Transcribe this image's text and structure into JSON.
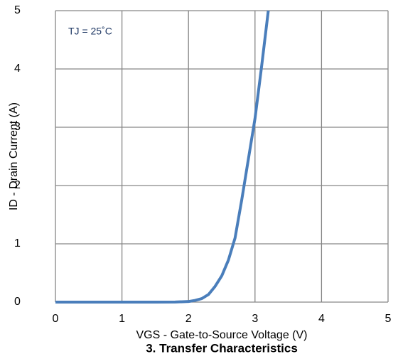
{
  "chart_data": {
    "type": "line",
    "title": "3. Transfer Characteristics",
    "xlabel": "VGS - Gate-to-Source Voltage (V)",
    "ylabel": "ID - Drain Current (A)",
    "annotation": "TJ = 25˚C",
    "x": [
      0,
      0.5,
      1,
      1.5,
      1.8,
      2.0,
      2.1,
      2.2,
      2.3,
      2.4,
      2.5,
      2.6,
      2.7,
      2.8,
      2.9,
      3.0,
      3.1,
      3.2
    ],
    "series": [
      {
        "name": "ID",
        "color": "#4a7ebb",
        "values": [
          0,
          0,
          0,
          0,
          0.002,
          0.01,
          0.03,
          0.06,
          0.13,
          0.27,
          0.45,
          0.72,
          1.1,
          1.75,
          2.45,
          3.15,
          4.05,
          5.0
        ]
      }
    ],
    "xlim": [
      0,
      5
    ],
    "xticks": [
      0,
      1,
      2,
      3,
      4,
      5
    ],
    "ylim": [
      0,
      5
    ],
    "yticks": [
      0,
      1,
      2,
      3,
      4,
      5
    ],
    "grid": true
  }
}
